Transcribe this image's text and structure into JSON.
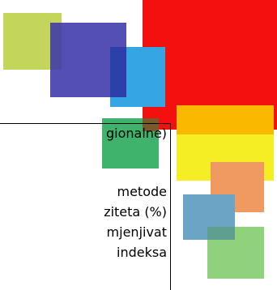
{
  "text_fragments": [
    "gionalne)",
    "metode",
    "ziteta (%)",
    "mjenjivat",
    "indeksa"
  ],
  "colors": {
    "red": "#f51010",
    "orange": "#fbb800",
    "yellow": "#f5ee24",
    "green": "#3fb26b",
    "blue_indigo": "#4f4ab4",
    "light_blue": "#35a6e1",
    "lime": "#c3d55a",
    "salmon": "#f09a61",
    "steel_blue": "#6aa5c6",
    "light_green": "#8fd27b"
  }
}
